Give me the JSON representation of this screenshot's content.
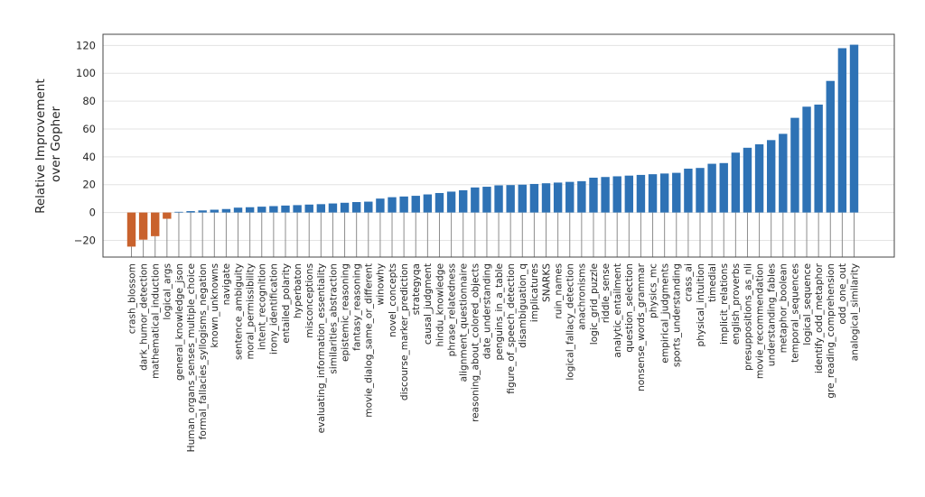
{
  "chart_data": {
    "type": "bar",
    "title": "",
    "ylabel": "Relative Improvement\nover Gopher",
    "xlabel": "",
    "ylim": [
      -32,
      128
    ],
    "yticks": [
      -20,
      0,
      20,
      40,
      60,
      80,
      100,
      120
    ],
    "grid": true,
    "legend": "none",
    "colors": {
      "positive": "#2e72b5",
      "negative": "#c9622d",
      "stem": "#8c8c8c",
      "grid": "#e3e3e3",
      "frame": "#444444"
    },
    "categories": [
      "crash_blossom",
      "dark_humor_detection",
      "mathematical_induction",
      "logical_args",
      "general_knowledge_json",
      "Human_organs_senses_multiple_choice",
      "formal_fallacies_syllogisms_negation",
      "known_unknowns",
      "navigate",
      "sentence_ambiguity",
      "moral_permissibility",
      "intent_recognition",
      "irony_identification",
      "entailed_polarity",
      "hyperbaton",
      "misconceptions",
      "evaluating_information_essentiality",
      "similarities_abstraction",
      "epistemic_reasoning",
      "fantasy_reasoning",
      "movie_dialog_same_or_different",
      "winowhy",
      "novel_concepts",
      "discourse_marker_prediction",
      "strategyqa",
      "causal_judgment",
      "hindu_knowledge",
      "phrase_relatedness",
      "alignment_questionnaire",
      "reasoning_about_colored_objects",
      "date_understanding",
      "penguins_in_a_table",
      "figure_of_speech_detection",
      "disambiguation_q",
      "implicatures",
      "SNARKS",
      "ruin_names",
      "logical_fallacy_detection",
      "anachronisms",
      "logic_grid_puzzle",
      "riddle_sense",
      "analytic_entailment",
      "question_selection",
      "nonsense_words_grammar",
      "physics_mc",
      "empirical_judgments",
      "sports_understanding",
      "crass_ai",
      "physical_intuition",
      "timedial",
      "implicit_relations",
      "english_proverbs",
      "presuppositions_as_nli",
      "movie_recommendation",
      "understanding_fables",
      "metaphor_boolean",
      "temporal_sequences",
      "logical_sequence",
      "identify_odd_metaphor",
      "gre_reading_comprehension",
      "odd_one_out",
      "analogical_similarity"
    ],
    "values": [
      -24.5,
      -19.5,
      -17.0,
      -4.5,
      0.5,
      1.0,
      1.5,
      2.0,
      2.5,
      3.5,
      3.8,
      4.2,
      4.6,
      5.0,
      5.3,
      5.7,
      6.0,
      6.5,
      7.0,
      7.5,
      7.8,
      10.0,
      11.0,
      11.5,
      12.0,
      13.0,
      14.0,
      15.0,
      16.0,
      18.0,
      18.5,
      19.5,
      19.7,
      20.0,
      20.5,
      21.0,
      21.5,
      22.0,
      22.5,
      25.0,
      25.5,
      26.0,
      26.5,
      27.0,
      27.5,
      28.0,
      28.5,
      31.5,
      32.0,
      35.0,
      35.5,
      43.0,
      46.5,
      49.0,
      52.0,
      56.5,
      68.0,
      76.0,
      77.5,
      94.5,
      118.0,
      120.5
    ]
  }
}
